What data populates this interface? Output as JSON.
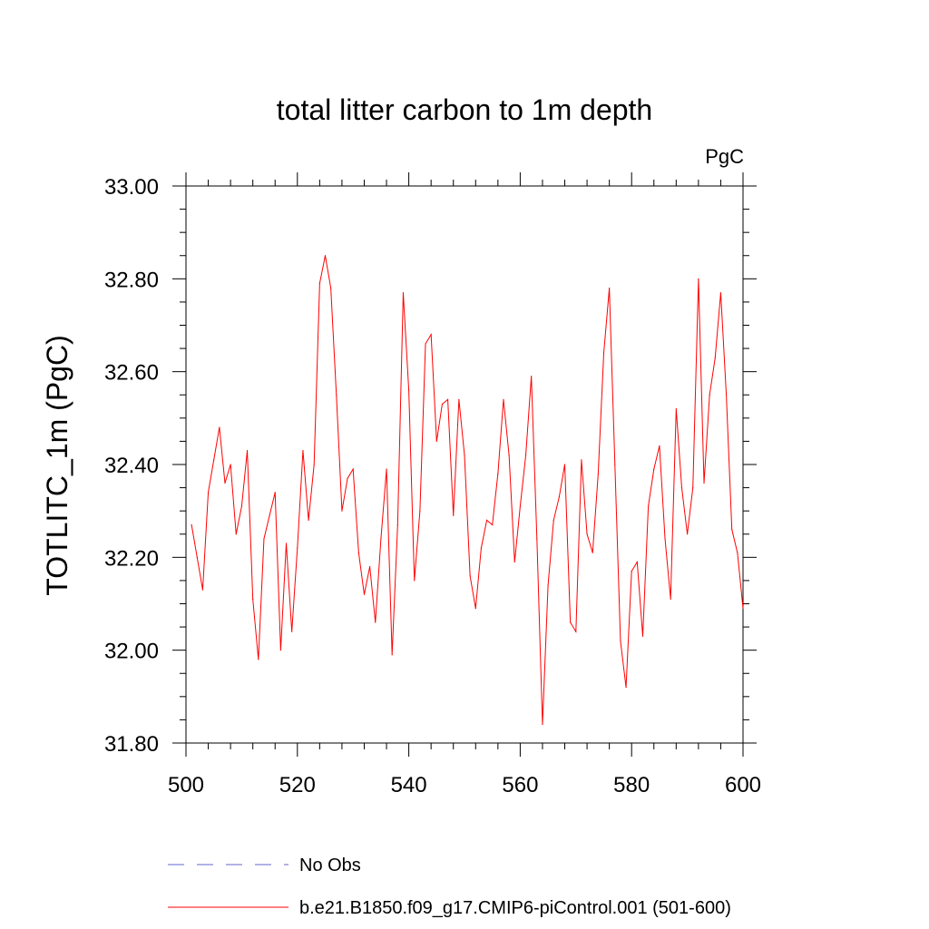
{
  "chart_data": {
    "type": "line",
    "title": "total litter carbon to 1m depth",
    "units_label": "PgC",
    "xlabel": "",
    "ylabel": "TOTLITC_1m  (PgC)",
    "xlim": [
      500,
      600
    ],
    "ylim": [
      31.8,
      33.0
    ],
    "x_ticks": [
      500,
      520,
      540,
      560,
      580,
      600
    ],
    "x_tick_labels": [
      "500",
      "520",
      "540",
      "560",
      "580",
      "600"
    ],
    "y_ticks": [
      31.8,
      32.0,
      32.2,
      32.4,
      32.6,
      32.8,
      33.0
    ],
    "y_tick_labels": [
      "31.80",
      "32.00",
      "32.20",
      "32.40",
      "32.60",
      "32.80",
      "33.00"
    ],
    "x_minor_step": 4,
    "y_minor_step": 0.05,
    "legend_position": "bottom-left",
    "series": [
      {
        "name": "b.e21.B1850.f09_g17.CMIP6-piControl.001 (501-600)",
        "color": "#ff0000",
        "style": "solid",
        "x": [
          501,
          502,
          503,
          504,
          505,
          506,
          507,
          508,
          509,
          510,
          511,
          512,
          513,
          514,
          515,
          516,
          517,
          518,
          519,
          520,
          521,
          522,
          523,
          524,
          525,
          526,
          527,
          528,
          529,
          530,
          531,
          532,
          533,
          534,
          535,
          536,
          537,
          538,
          539,
          540,
          541,
          542,
          543,
          544,
          545,
          546,
          547,
          548,
          549,
          550,
          551,
          552,
          553,
          554,
          555,
          556,
          557,
          558,
          559,
          560,
          561,
          562,
          563,
          564,
          565,
          566,
          567,
          568,
          569,
          570,
          571,
          572,
          573,
          574,
          575,
          576,
          577,
          578,
          579,
          580,
          581,
          582,
          583,
          584,
          585,
          586,
          587,
          588,
          589,
          590,
          591,
          592,
          593,
          594,
          595,
          596,
          597,
          598,
          599,
          600
        ],
        "values": [
          32.27,
          32.2,
          32.13,
          32.34,
          32.41,
          32.48,
          32.36,
          32.4,
          32.25,
          32.31,
          32.43,
          32.11,
          31.98,
          32.24,
          32.29,
          32.34,
          32.0,
          32.23,
          32.04,
          32.22,
          32.43,
          32.28,
          32.4,
          32.79,
          32.85,
          32.78,
          32.55,
          32.3,
          32.37,
          32.39,
          32.21,
          32.12,
          32.18,
          32.06,
          32.24,
          32.39,
          31.99,
          32.27,
          32.77,
          32.56,
          32.15,
          32.3,
          32.66,
          32.68,
          32.45,
          32.53,
          32.54,
          32.29,
          32.54,
          32.42,
          32.16,
          32.09,
          32.22,
          32.28,
          32.27,
          32.38,
          32.54,
          32.42,
          32.19,
          32.31,
          32.42,
          32.59,
          32.24,
          31.84,
          32.14,
          32.28,
          32.33,
          32.4,
          32.06,
          32.04,
          32.41,
          32.25,
          32.21,
          32.38,
          32.64,
          32.78,
          32.4,
          32.02,
          31.92,
          32.17,
          32.19,
          32.03,
          32.31,
          32.39,
          32.44,
          32.24,
          32.11,
          32.52,
          32.35,
          32.25,
          32.35,
          32.8,
          32.36,
          32.55,
          32.63,
          32.77,
          32.55,
          32.26,
          32.21,
          32.09
        ]
      },
      {
        "name": "No Obs",
        "color": "#6666cc",
        "style": "dashed",
        "x": [],
        "values": []
      }
    ]
  }
}
